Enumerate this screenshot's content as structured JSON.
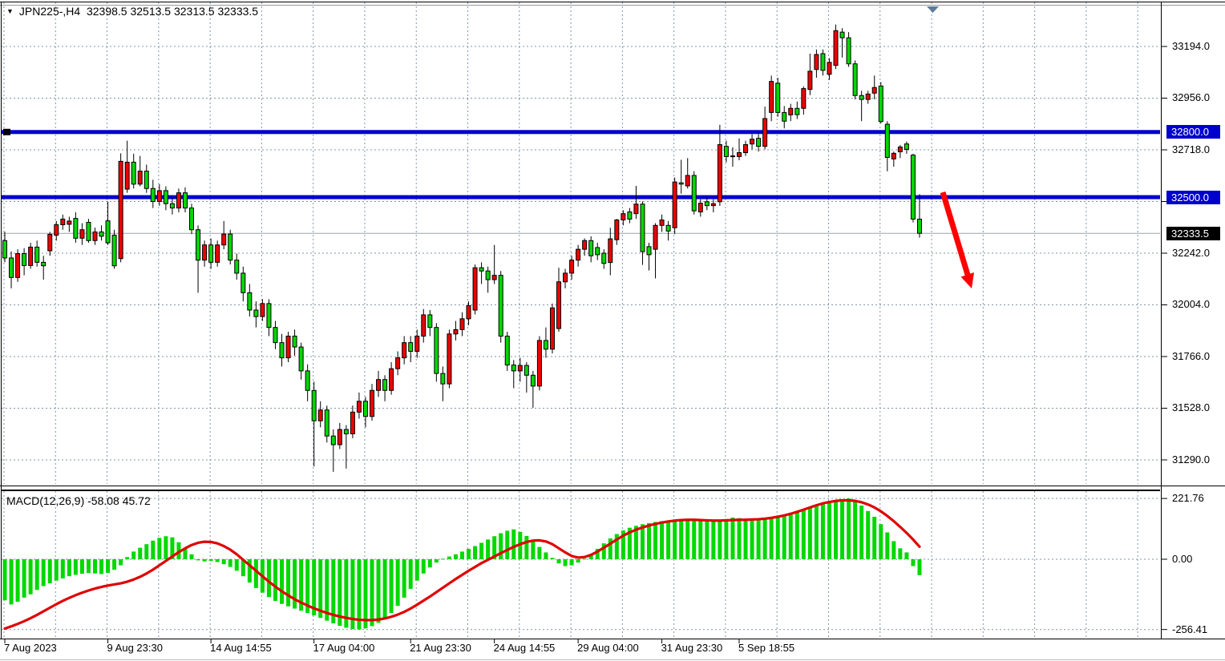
{
  "window": {
    "menu_icon_glyph": "▼",
    "title_symbol": "JPN225-,H4",
    "title_ohlc": "32398.5 32513.5 32313.5 32333.5"
  },
  "colors": {
    "background": "#ffffff",
    "grid": "#8494a4",
    "bull_candle": "#ee0000",
    "bear_candle": "#00d800",
    "candle_outline": "#000000",
    "hline": "#0000cc",
    "current_price_line": "#9aa5ad",
    "macd_histogram": "#00d800",
    "macd_signal": "#e00000",
    "arrow": "#ff0000",
    "tag_text": "#ffffff",
    "current_tag_bg": "#000000",
    "last_bar_marker": "#5b7c99"
  },
  "chart_data": [
    {
      "type": "candlestick",
      "symbol": "JPN225-",
      "timeframe": "H4",
      "color_convention": "red = bullish (close>open), green = bearish (close<open)",
      "y_tick_labels": [
        "33194.0",
        "32956.0",
        "32718.0",
        "32242.0",
        "32004.0",
        "31766.0",
        "31528.0",
        "31290.0"
      ],
      "grid_prices": [
        33194,
        32956,
        32718,
        32480,
        32242,
        32004,
        31766,
        31528,
        31290
      ],
      "x_labels": [
        {
          "index": 0,
          "label": "7 Aug 2023"
        },
        {
          "index": 16,
          "label": "9 Aug 23:30"
        },
        {
          "index": 32,
          "label": "14 Aug 14:55"
        },
        {
          "index": 48,
          "label": "17 Aug 04:00"
        },
        {
          "index": 63,
          "label": "21 Aug 23:30"
        },
        {
          "index": 76,
          "label": "24 Aug 14:55"
        },
        {
          "index": 89,
          "label": "29 Aug 04:00"
        },
        {
          "index": 102,
          "label": "31 Aug 23:30"
        },
        {
          "index": 114,
          "label": "5 Sep 18:55"
        }
      ],
      "price_lines": [
        {
          "price": 32800.0,
          "label": "32800.0"
        },
        {
          "price": 32500.0,
          "label": "32500.0"
        }
      ],
      "current_price": {
        "price": 32333.5,
        "label": "32333.5"
      },
      "last_bar": {
        "open": 32398.5,
        "high": 32513.5,
        "low": 32313.5,
        "close": 32333.5
      },
      "annotation": {
        "type": "down-right-arrow",
        "from_price": 32510,
        "to_price": 32070
      },
      "ohlc": [
        [
          32300,
          32340,
          32200,
          32220
        ],
        [
          32220,
          32250,
          32080,
          32130
        ],
        [
          32130,
          32260,
          32110,
          32240
        ],
        [
          32240,
          32265,
          32140,
          32185
        ],
        [
          32185,
          32290,
          32170,
          32270
        ],
        [
          32270,
          32300,
          32180,
          32200
        ],
        [
          32200,
          32230,
          32120,
          32184
        ],
        [
          32253,
          32340,
          32230,
          32329
        ],
        [
          32325,
          32390,
          32300,
          32373
        ],
        [
          32373,
          32420,
          32350,
          32399
        ],
        [
          32375,
          32410,
          32340,
          32390
        ],
        [
          32402,
          32430,
          32290,
          32311
        ],
        [
          32311,
          32380,
          32280,
          32350
        ],
        [
          32384,
          32400,
          32290,
          32300
        ],
        [
          32300,
          32360,
          32280,
          32340
        ],
        [
          32340,
          32370,
          32300,
          32320
        ],
        [
          32391,
          32480,
          32280,
          32290
        ],
        [
          32325,
          32350,
          32170,
          32184
        ],
        [
          32217,
          32702,
          32200,
          32665
        ],
        [
          32537,
          32760,
          32520,
          32661
        ],
        [
          32661,
          32700,
          32540,
          32560
        ],
        [
          32560,
          32690,
          32550,
          32620
        ],
        [
          32620,
          32650,
          32520,
          32540
        ],
        [
          32540,
          32580,
          32450,
          32480
        ],
        [
          32480,
          32560,
          32460,
          32530
        ],
        [
          32530,
          32550,
          32440,
          32470
        ],
        [
          32470,
          32500,
          32420,
          32450
        ],
        [
          32450,
          32540,
          32430,
          32520
        ],
        [
          32520,
          32545,
          32430,
          32450
        ],
        [
          32450,
          32470,
          32330,
          32350
        ],
        [
          32350,
          32370,
          32060,
          32210
        ],
        [
          32210,
          32300,
          32180,
          32280
        ],
        [
          32280,
          32310,
          32170,
          32200
        ],
        [
          32200,
          32300,
          32180,
          32280
        ],
        [
          32280,
          32390,
          32260,
          32330
        ],
        [
          32330,
          32350,
          32190,
          32210
        ],
        [
          32210,
          32240,
          32120,
          32150
        ],
        [
          32150,
          32180,
          32020,
          32060
        ],
        [
          32060,
          32100,
          31950,
          31980
        ],
        [
          31980,
          32020,
          31900,
          31950
        ],
        [
          31950,
          32030,
          31930,
          32010
        ],
        [
          32010,
          32030,
          31860,
          31900
        ],
        [
          31900,
          31930,
          31800,
          31830
        ],
        [
          31830,
          31870,
          31720,
          31760
        ],
        [
          31760,
          31880,
          31740,
          31860
        ],
        [
          31860,
          31890,
          31770,
          31810
        ],
        [
          31810,
          31830,
          31660,
          31700
        ],
        [
          31700,
          31730,
          31560,
          31610
        ],
        [
          31610,
          31650,
          31260,
          31470
        ],
        [
          31470,
          31560,
          31440,
          31520
        ],
        [
          31520,
          31540,
          31370,
          31400
        ],
        [
          31400,
          31430,
          31235,
          31360
        ],
        [
          31360,
          31460,
          31340,
          31430
        ],
        [
          31430,
          31450,
          31250,
          31410
        ],
        [
          31410,
          31540,
          31390,
          31510
        ],
        [
          31510,
          31600,
          31480,
          31560
        ],
        [
          31560,
          31580,
          31440,
          31490
        ],
        [
          31490,
          31640,
          31470,
          31610
        ],
        [
          31610,
          31700,
          31580,
          31660
        ],
        [
          31660,
          31680,
          31560,
          31610
        ],
        [
          31610,
          31740,
          31590,
          31710
        ],
        [
          31710,
          31790,
          31680,
          31760
        ],
        [
          31760,
          31860,
          31730,
          31830
        ],
        [
          31830,
          31860,
          31740,
          31790
        ],
        [
          31790,
          31890,
          31760,
          31860
        ],
        [
          31860,
          31985,
          31830,
          31958
        ],
        [
          31958,
          31980,
          31860,
          31900
        ],
        [
          31900,
          31920,
          31650,
          31688
        ],
        [
          31688,
          31720,
          31560,
          31640
        ],
        [
          31640,
          31890,
          31620,
          31870
        ],
        [
          31870,
          31930,
          31840,
          31890
        ],
        [
          31890,
          31970,
          31860,
          31940
        ],
        [
          31940,
          32020,
          31910,
          32000
        ],
        [
          31980,
          32190,
          31960,
          32175
        ],
        [
          32175,
          32200,
          32100,
          32160
        ],
        [
          32160,
          32180,
          32060,
          32120
        ],
        [
          32120,
          32280,
          32100,
          32140
        ],
        [
          32140,
          32160,
          31830,
          31860
        ],
        [
          31860,
          31880,
          31700,
          31727
        ],
        [
          31727,
          31750,
          31620,
          31700
        ],
        [
          31700,
          31760,
          31650,
          31725
        ],
        [
          31725,
          31740,
          31600,
          31680
        ],
        [
          31680,
          31700,
          31530,
          31630
        ],
        [
          31630,
          31860,
          31610,
          31840
        ],
        [
          31840,
          31900,
          31760,
          31800
        ],
        [
          31800,
          32010,
          31780,
          31990
        ],
        [
          31895,
          32175,
          31880,
          32110
        ],
        [
          32110,
          32170,
          32080,
          32150
        ],
        [
          32150,
          32230,
          32120,
          32210
        ],
        [
          32210,
          32280,
          32180,
          32260
        ],
        [
          32260,
          32310,
          32230,
          32300
        ],
        [
          32300,
          32320,
          32200,
          32230
        ],
        [
          32268,
          32290,
          32210,
          32235
        ],
        [
          32242,
          32260,
          32170,
          32195
        ],
        [
          32199,
          32359,
          32140,
          32308
        ],
        [
          32304,
          32400,
          32280,
          32395
        ],
        [
          32395,
          32440,
          32370,
          32424
        ],
        [
          32432,
          32450,
          32380,
          32399
        ],
        [
          32424,
          32552,
          32400,
          32468
        ],
        [
          32468,
          32480,
          32188,
          32249
        ],
        [
          32272,
          32290,
          32162,
          32235
        ],
        [
          32260,
          32380,
          32126,
          32370
        ],
        [
          32370,
          32420,
          32340,
          32395
        ],
        [
          32370,
          32390,
          32300,
          32344
        ],
        [
          32359,
          32590,
          32330,
          32570
        ],
        [
          32566,
          32672,
          32516,
          32560
        ],
        [
          32552,
          32680,
          32540,
          32600
        ],
        [
          32600,
          32620,
          32420,
          32437
        ],
        [
          32432,
          32490,
          32410,
          32472
        ],
        [
          32479,
          32500,
          32440,
          32461
        ],
        [
          32461,
          32490,
          32430,
          32470
        ],
        [
          32479,
          32833,
          32460,
          32742
        ],
        [
          32734,
          32760,
          32660,
          32687
        ],
        [
          32687,
          32730,
          32640,
          32690
        ],
        [
          32687,
          32771,
          32670,
          32705
        ],
        [
          32705,
          32760,
          32690,
          32742
        ],
        [
          32745,
          32790,
          32720,
          32767
        ],
        [
          32771,
          32790,
          32710,
          32734
        ],
        [
          32734,
          32917,
          32720,
          32862
        ],
        [
          32890,
          33060,
          32850,
          33033
        ],
        [
          33025,
          33050,
          32870,
          32890
        ],
        [
          32890,
          32920,
          32817,
          32850
        ],
        [
          32879,
          32930,
          32850,
          32909
        ],
        [
          32909,
          32940,
          32860,
          32880
        ],
        [
          32909,
          33010,
          32880,
          33000
        ],
        [
          32996,
          33161,
          32970,
          33080
        ],
        [
          33088,
          33180,
          33050,
          33157
        ],
        [
          33161,
          33180,
          33060,
          33084
        ],
        [
          33066,
          33140,
          33040,
          33121
        ],
        [
          33107,
          33295,
          33090,
          33267
        ],
        [
          33260,
          33278,
          33143,
          33234
        ],
        [
          33234,
          33260,
          33100,
          33114
        ],
        [
          33114,
          33130,
          32950,
          32968
        ],
        [
          32968,
          32990,
          32850,
          32950
        ],
        [
          32950,
          32990,
          32930,
          32975
        ],
        [
          32979,
          33060,
          32950,
          33005
        ],
        [
          33012,
          33030,
          32840,
          32848
        ],
        [
          32836,
          32850,
          32619,
          32683
        ],
        [
          32676,
          32710,
          32640,
          32702
        ],
        [
          32709,
          32740,
          32680,
          32731
        ],
        [
          32745,
          32756,
          32700,
          32720
        ],
        [
          32694,
          32700,
          32384,
          32399
        ],
        [
          32398.5,
          32513.5,
          32313.5,
          32333.5
        ]
      ]
    },
    {
      "type": "bar",
      "name": "MACD(12,26,9)",
      "label": "MACD(12,26,9) -58.08 45.72",
      "last_macd": -58.08,
      "last_signal": 45.72,
      "y_tick_labels": [
        "221.76",
        "0.00",
        "-256.41"
      ],
      "ylim": [
        -256.41,
        221.76
      ],
      "histogram": [
        -150,
        -165,
        -155,
        -140,
        -128,
        -112,
        -98,
        -88,
        -78,
        -70,
        -62,
        -57,
        -53,
        -50,
        -52,
        -54,
        -50,
        -38,
        -22,
        8,
        28,
        42,
        55,
        68,
        78,
        84,
        80,
        62,
        40,
        18,
        -4,
        -8,
        -6,
        -10,
        -18,
        -28,
        -42,
        -62,
        -85,
        -105,
        -122,
        -138,
        -152,
        -163,
        -172,
        -180,
        -188,
        -196,
        -205,
        -214,
        -224,
        -234,
        -243,
        -250,
        -255,
        -256.41,
        -252,
        -244,
        -232,
        -216,
        -196,
        -170,
        -140,
        -108,
        -78,
        -52,
        -30,
        -12,
        2,
        10,
        18,
        28,
        38,
        48,
        60,
        72,
        84,
        95,
        104,
        109,
        100,
        85,
        65,
        45,
        25,
        5,
        -15,
        -25,
        -22,
        -12,
        2,
        18,
        38,
        58,
        76,
        92,
        105,
        115,
        122,
        128,
        132,
        136,
        139,
        141,
        143,
        144,
        143,
        141,
        139,
        138,
        140,
        143,
        147,
        152,
        150,
        147,
        145,
        146,
        148,
        151,
        155,
        160,
        166,
        172,
        180,
        188,
        195,
        201,
        207,
        213,
        218,
        221.76,
        213,
        196,
        176,
        155,
        128,
        98,
        66,
        40,
        25,
        -25,
        -58.08
      ],
      "signal": [
        -253,
        -245,
        -236,
        -226,
        -215,
        -203,
        -190,
        -177,
        -164,
        -152,
        -141,
        -131,
        -122,
        -114,
        -107,
        -101,
        -96,
        -92,
        -88,
        -82,
        -74,
        -64,
        -52,
        -38,
        -22,
        -6,
        10,
        26,
        40,
        52,
        60,
        64,
        63,
        58,
        48,
        35,
        18,
        -2,
        -22,
        -42,
        -62,
        -82,
        -100,
        -117,
        -132,
        -146,
        -158,
        -169,
        -179,
        -188,
        -196,
        -203,
        -209,
        -214,
        -218,
        -221,
        -222,
        -222,
        -220,
        -216,
        -210,
        -202,
        -192,
        -180,
        -166,
        -151,
        -136,
        -120,
        -104,
        -88,
        -72,
        -57,
        -42,
        -28,
        -14,
        -2,
        10,
        22,
        34,
        45,
        55,
        63,
        68,
        69,
        65,
        55,
        40,
        25,
        12,
        6,
        8,
        16,
        28,
        42,
        57,
        72,
        86,
        98,
        108,
        116,
        123,
        129,
        134,
        138,
        141,
        143,
        144,
        144,
        143,
        142,
        141,
        141,
        142,
        143,
        144,
        144,
        145,
        146,
        148,
        151,
        155,
        160,
        166,
        173,
        181,
        189,
        197,
        204,
        209,
        213,
        215,
        215,
        213,
        208,
        200,
        189,
        175,
        158,
        139,
        118,
        96,
        72,
        45.72
      ]
    }
  ]
}
